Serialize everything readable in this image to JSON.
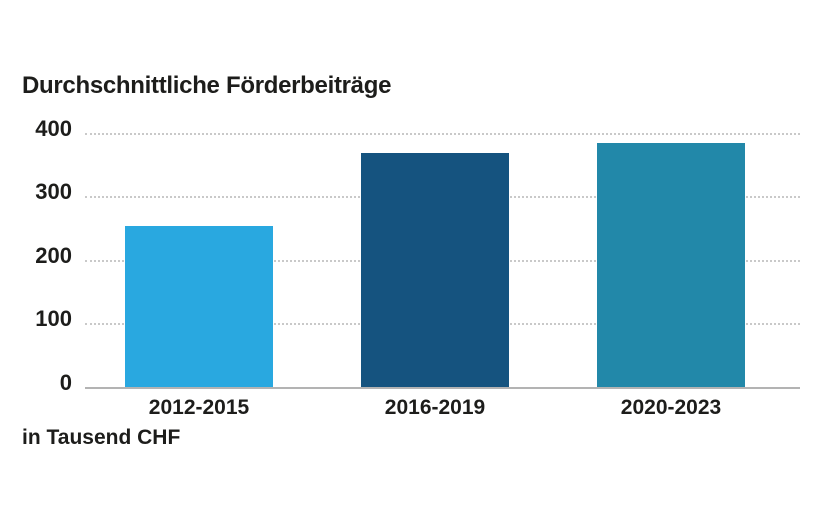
{
  "header": {
    "title": "Durchschnittliche Förderbeiträge"
  },
  "footer": {
    "unit_label": "in Tausend CHF"
  },
  "chart_data": {
    "type": "bar",
    "title": "Durchschnittliche Förderbeiträge",
    "categories": [
      "2012-2015",
      "2016-2019",
      "2020-2023"
    ],
    "values": [
      255,
      370,
      385
    ],
    "bar_colors": [
      "#29A8E0",
      "#15537F",
      "#2288A9"
    ],
    "xlabel": "",
    "ylabel": "in Tausend CHF",
    "ylim": [
      0,
      400
    ],
    "yticks": [
      0,
      100,
      200,
      300,
      400
    ],
    "grid": "horizontal-dotted",
    "legend": "none"
  },
  "colors": {
    "background": "#ffffff",
    "text": "#1d1d1b",
    "gridline": "#c9c9c9",
    "baseline": "#b3b3b3"
  }
}
